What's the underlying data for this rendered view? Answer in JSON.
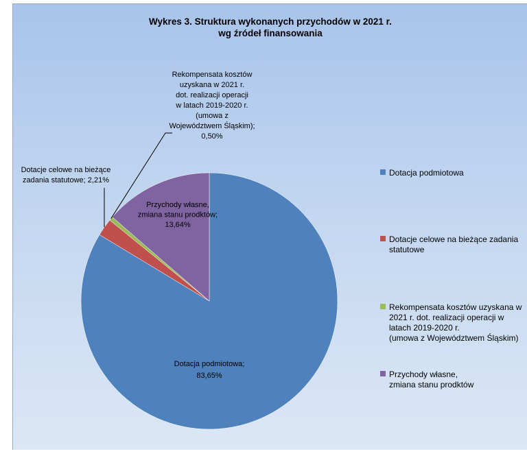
{
  "chart_data": {
    "type": "pie",
    "title": [
      "Wykres 3. Struktura wykonanych przychodów w 2021 r.",
      "wg źródeł finansowania"
    ],
    "legend_position": "right",
    "slices": [
      {
        "name": "Dotacja podmiotowa",
        "value": 83.65,
        "color": "#4f81bd",
        "data_label": [
          "Dotacja podmiotowa;",
          "83,65%"
        ],
        "legend_label": [
          "Dotacja podmiotowa"
        ]
      },
      {
        "name": "Dotacje celowe na bieżące zadania statutowe",
        "value": 2.21,
        "color": "#c0504d",
        "data_label": [
          "Dotacje celowe na bieżące",
          "zadania statutowe; 2,21%"
        ],
        "legend_label": [
          "Dotacje celowe na bieżące zadania",
          "statutowe"
        ]
      },
      {
        "name": "Rekompensata kosztów uzyskana w 2021 r. dot. realizacji operacji w latach 2019-2020 r. (umowa z Województwem Śląskim)",
        "value": 0.5,
        "color": "#9bbb59",
        "data_label": [
          "Rekompensata kosztów",
          "uzyskana w 2021 r.",
          "dot. realizacji operacji",
          "w latach 2019-2020 r.",
          "(umowa z",
          "Województwem Śląskim);",
          "0,50%"
        ],
        "legend_label": [
          "Rekompensata kosztów uzyskana w",
          "2021 r. dot. realizacji operacji w",
          "latach 2019-2020 r.",
          "(umowa z Województwem Śląskim)"
        ]
      },
      {
        "name": "Przychody własne, zmiana stanu prodktów",
        "value": 13.64,
        "color": "#8064a2",
        "data_label": [
          "Przychody własne,",
          "zmiana stanu prodktów;",
          "13,64%"
        ],
        "legend_label": [
          "Przychody własne,",
          "zmiana stanu prodktów"
        ]
      }
    ]
  }
}
